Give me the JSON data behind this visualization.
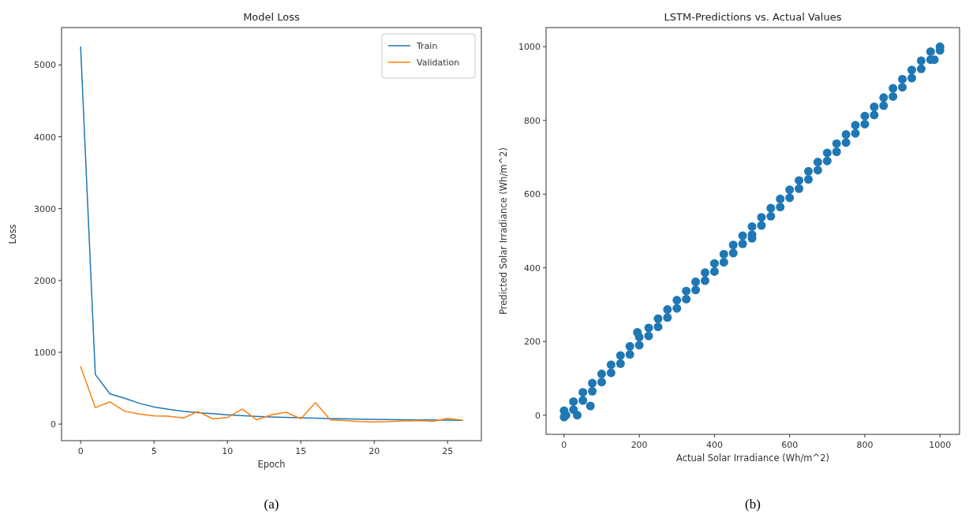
{
  "chart_data": [
    {
      "type": "line",
      "title": "Model Loss",
      "xlabel": "Epoch",
      "ylabel": "Loss",
      "x": [
        0,
        1,
        2,
        3,
        4,
        5,
        6,
        7,
        8,
        9,
        10,
        11,
        12,
        13,
        14,
        15,
        16,
        17,
        18,
        19,
        20,
        21,
        22,
        23,
        24,
        25,
        26
      ],
      "series": [
        {
          "name": "Train",
          "color": "#1f77b4",
          "values": [
            5250,
            690,
            420,
            360,
            290,
            240,
            205,
            180,
            160,
            145,
            130,
            118,
            108,
            100,
            93,
            87,
            82,
            78,
            74,
            70,
            67,
            64,
            61,
            59,
            57,
            55,
            52
          ]
        },
        {
          "name": "Validation",
          "color": "#ff7f0e",
          "values": [
            800,
            230,
            310,
            180,
            140,
            115,
            110,
            85,
            175,
            75,
            90,
            210,
            60,
            130,
            165,
            75,
            300,
            60,
            50,
            35,
            30,
            35,
            45,
            50,
            40,
            80,
            55
          ]
        }
      ],
      "xlim": [
        -1.3,
        27.3
      ],
      "xticks": [
        0,
        5,
        10,
        15,
        20,
        25
      ],
      "ylim": [
        -230,
        5520
      ],
      "yticks": [
        0,
        1000,
        2000,
        3000,
        4000,
        5000
      ],
      "legend": "top right",
      "grid": false,
      "annotations": [
        "(a)"
      ]
    },
    {
      "type": "scatter",
      "title": "LSTM-Predictions vs. Actual Values",
      "xlabel": "Actual Solar Irradiance (Wh/m^2)",
      "ylabel": "Predicted Solar Irradiance (Wh/m^2)",
      "series": [
        {
          "color": "#1f77b4",
          "x": [
            0,
            0,
            25,
            25,
            50,
            50,
            75,
            75,
            100,
            100,
            125,
            125,
            150,
            150,
            175,
            175,
            200,
            200,
            225,
            225,
            250,
            250,
            275,
            275,
            300,
            300,
            325,
            325,
            350,
            350,
            375,
            375,
            400,
            400,
            425,
            425,
            450,
            450,
            475,
            475,
            500,
            500,
            525,
            525,
            550,
            550,
            575,
            575,
            600,
            600,
            625,
            625,
            650,
            650,
            675,
            675,
            700,
            700,
            725,
            725,
            750,
            750,
            775,
            775,
            800,
            800,
            825,
            825,
            850,
            850,
            875,
            875,
            900,
            900,
            925,
            925,
            950,
            950,
            975,
            975,
            1000,
            1000,
            70,
            195,
            35,
            500,
            985,
            5
          ],
          "values": [
            12,
            -5,
            37,
            15,
            62,
            40,
            87,
            65,
            112,
            90,
            137,
            115,
            162,
            140,
            187,
            165,
            212,
            190,
            237,
            215,
            262,
            240,
            287,
            265,
            312,
            290,
            337,
            315,
            362,
            340,
            387,
            365,
            412,
            390,
            437,
            415,
            462,
            440,
            487,
            465,
            512,
            490,
            537,
            515,
            562,
            540,
            587,
            565,
            612,
            590,
            637,
            615,
            662,
            640,
            687,
            665,
            712,
            690,
            737,
            715,
            762,
            740,
            787,
            765,
            812,
            790,
            837,
            815,
            862,
            840,
            887,
            865,
            912,
            890,
            937,
            915,
            962,
            940,
            987,
            965,
            1000,
            990,
            25,
            225,
            0,
            480,
            965,
            0
          ]
        }
      ],
      "xlim": [
        -48,
        1052
      ],
      "xticks": [
        0,
        200,
        400,
        600,
        800,
        1000
      ],
      "ylim": [
        -52,
        1052
      ],
      "yticks": [
        0,
        200,
        400,
        600,
        800,
        1000
      ],
      "marker": "circle",
      "grid": false,
      "annotations": [
        "(b)"
      ]
    }
  ]
}
